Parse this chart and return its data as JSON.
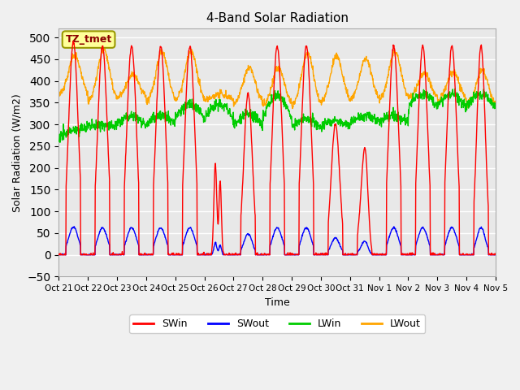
{
  "title": "4-Band Solar Radiation",
  "ylabel": "Solar Radiation (W/m2)",
  "xlabel": "Time",
  "annotation": "TZ_tmet",
  "ylim": [
    -50,
    520
  ],
  "xlim": [
    0,
    360
  ],
  "series": [
    "SWin",
    "SWout",
    "LWin",
    "LWout"
  ],
  "colors": {
    "SWin": "#FF0000",
    "SWout": "#0000FF",
    "LWin": "#00CC00",
    "LWout": "#FFA500"
  },
  "tick_labels": [
    "Oct 21",
    "Oct 22",
    "Oct 23",
    "Oct 24",
    "Oct 25",
    "Oct 26",
    "Oct 27",
    "Oct 28",
    "Oct 29",
    "Oct 30",
    "Oct 31",
    "Nov 1",
    "Nov 2",
    "Nov 3",
    "Nov 4",
    "Nov 5"
  ],
  "tick_positions": [
    0,
    24,
    48,
    72,
    96,
    120,
    144,
    168,
    192,
    216,
    240,
    264,
    288,
    312,
    336,
    360
  ],
  "yticks": [
    -50,
    0,
    50,
    100,
    150,
    200,
    250,
    300,
    350,
    400,
    450,
    500
  ],
  "linewidth": 1.0
}
